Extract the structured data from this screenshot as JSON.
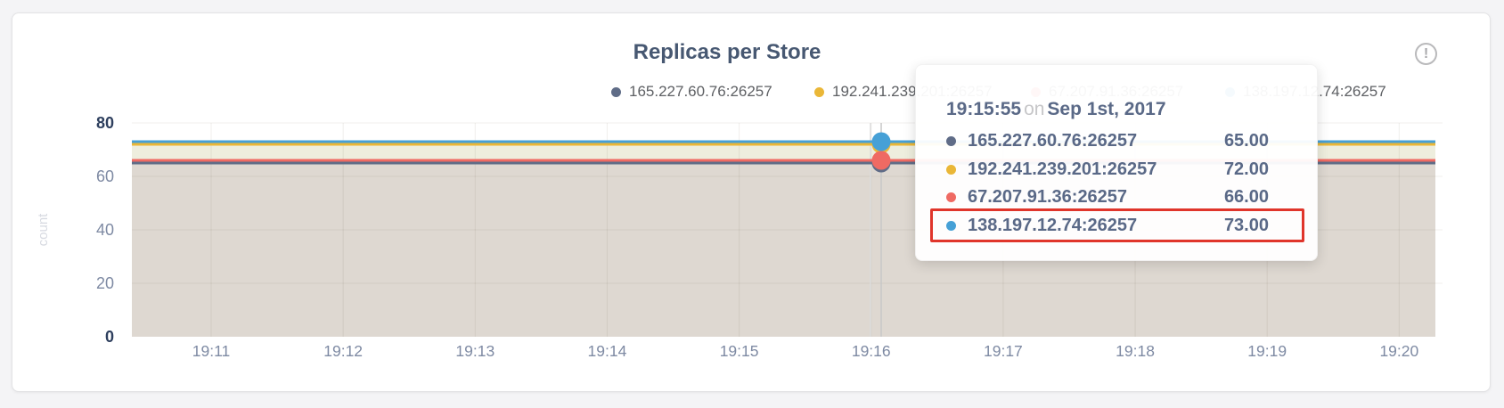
{
  "card": {
    "title": "Replicas per Store"
  },
  "alert_icon": {
    "glyph": "!"
  },
  "colors": {
    "title_text": "#475872",
    "legend_text": "#5e6064",
    "axis_text": "#7e8aa3",
    "axis_emphasis": "#2e3f5e",
    "ylabel_text": "#d7dae1",
    "grid_line": "rgba(60,45,30,0.08)",
    "hover_guide_light": "#dcdcdc",
    "hover_guide_dark": "#c7c7c7",
    "tooltip_text": "#5a6987",
    "tooltip_connector": "#c6c6c8",
    "highlight_border": "#e0352b"
  },
  "chart_data": {
    "type": "line",
    "title": "Replicas per Store",
    "xlabel": "",
    "ylabel": "count",
    "x_ticks": [
      "19:11",
      "19:12",
      "19:13",
      "19:14",
      "19:15",
      "19:16",
      "19:17",
      "19:18",
      "19:19",
      "19:20"
    ],
    "y_ticks": [
      0,
      20,
      40,
      60,
      80
    ],
    "ylim": [
      0,
      80
    ],
    "legend_position": "top",
    "grid": true,
    "series": [
      {
        "name": "165.227.60.76:26257",
        "color": "#5f6c87",
        "value": 65
      },
      {
        "name": "192.241.239.201:26257",
        "color": "#eab737",
        "value": 72
      },
      {
        "name": "67.207.91.36:26257",
        "color": "#ef6a63",
        "value": 66
      },
      {
        "name": "138.197.12.74:26257",
        "color": "#46a0d6",
        "value": 73
      }
    ],
    "fill_bands": [
      {
        "from": 73,
        "to": 66,
        "color": "#eeeede"
      },
      {
        "from": 66,
        "to": 0,
        "color": "#ded8d1"
      }
    ],
    "hover": {
      "time": "19:15:55",
      "date": "Sep 1st, 2017"
    }
  },
  "tooltip": {
    "time": "19:15:55",
    "connector": "on",
    "date": "Sep 1st, 2017",
    "rows": [
      {
        "name": "165.227.60.76:26257",
        "value": "65.00"
      },
      {
        "name": "192.241.239.201:26257",
        "value": "72.00"
      },
      {
        "name": "67.207.91.36:26257",
        "value": "66.00"
      },
      {
        "name": "138.197.12.74:26257",
        "value": "73.00"
      }
    ],
    "highlight_row_index": 3
  }
}
